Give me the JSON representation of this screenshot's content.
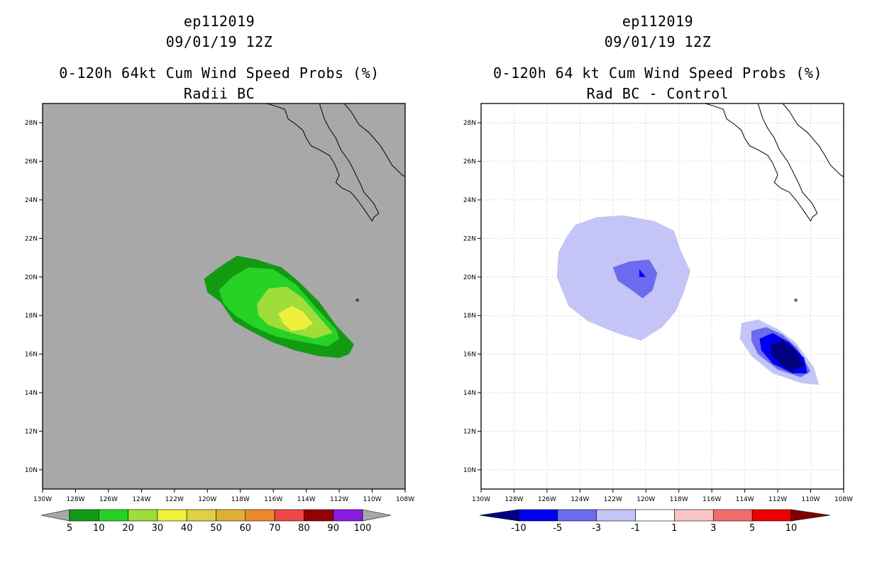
{
  "chart_data": [
    {
      "type": "contour",
      "title_lines": [
        "ep112019",
        "09/01/19 12Z",
        "0-120h 64kt Cum Wind Speed Probs (%)",
        "Radii BC"
      ],
      "x_ticks": [
        "130W",
        "128W",
        "126W",
        "124W",
        "122W",
        "120W",
        "118W",
        "116W",
        "114W",
        "112W",
        "110W",
        "108W"
      ],
      "y_ticks": [
        "10N",
        "12N",
        "14N",
        "16N",
        "18N",
        "20N",
        "22N",
        "24N",
        "26N",
        "28N"
      ],
      "xlim": [
        -130,
        -108
      ],
      "ylim": [
        9,
        29
      ],
      "grid": false,
      "background": "#a8a8a8",
      "colorbar": {
        "labels": [
          "5",
          "10",
          "20",
          "30",
          "40",
          "50",
          "60",
          "70",
          "80",
          "90",
          "100"
        ],
        "colors": [
          "#139a13",
          "#26d226",
          "#9fdd3a",
          "#f0f03c",
          "#dcd244",
          "#dfae34",
          "#ea8a2b",
          "#ee4747",
          "#950000",
          "#8a1be0"
        ],
        "end_colors": [
          "#a8a8a8",
          "#a8a8a8"
        ]
      },
      "contours": [
        {
          "level": "5-10",
          "color": "#139a13",
          "points": [
            [
              -120.2,
              19.9
            ],
            [
              -119.3,
              20.5
            ],
            [
              -118.2,
              21.1
            ],
            [
              -117.0,
              20.9
            ],
            [
              -115.5,
              20.5
            ],
            [
              -114.5,
              19.8
            ],
            [
              -113.2,
              18.7
            ],
            [
              -112.2,
              17.5
            ],
            [
              -111.1,
              16.5
            ],
            [
              -111.4,
              16.0
            ],
            [
              -112.0,
              15.8
            ],
            [
              -113.3,
              15.9
            ],
            [
              -114.7,
              16.2
            ],
            [
              -116.0,
              16.6
            ],
            [
              -117.4,
              17.2
            ],
            [
              -118.4,
              17.7
            ],
            [
              -119.2,
              18.7
            ],
            [
              -120.0,
              19.2
            ]
          ]
        },
        {
          "level": "10-20",
          "color": "#26d226",
          "points": [
            [
              -119.3,
              19.3
            ],
            [
              -118.5,
              20.0
            ],
            [
              -117.5,
              20.5
            ],
            [
              -116.0,
              20.4
            ],
            [
              -114.6,
              19.6
            ],
            [
              -113.4,
              18.4
            ],
            [
              -112.2,
              17.3
            ],
            [
              -112.0,
              16.8
            ],
            [
              -112.7,
              16.4
            ],
            [
              -114.0,
              16.6
            ],
            [
              -115.8,
              16.9
            ],
            [
              -117.2,
              17.4
            ],
            [
              -118.3,
              18.0
            ],
            [
              -119.0,
              18.6
            ]
          ]
        },
        {
          "level": "20-30",
          "color": "#9fdd3a",
          "points": [
            [
              -117.0,
              18.6
            ],
            [
              -116.3,
              19.4
            ],
            [
              -115.2,
              19.5
            ],
            [
              -114.2,
              18.9
            ],
            [
              -113.2,
              17.9
            ],
            [
              -112.4,
              17.1
            ],
            [
              -113.5,
              16.8
            ],
            [
              -114.9,
              17.1
            ],
            [
              -116.3,
              17.5
            ],
            [
              -116.9,
              18.0
            ]
          ]
        },
        {
          "level": "30-40",
          "color": "#f0f03c",
          "points": [
            [
              -115.7,
              18.1
            ],
            [
              -114.9,
              18.5
            ],
            [
              -114.2,
              18.2
            ],
            [
              -113.6,
              17.6
            ],
            [
              -114.1,
              17.3
            ],
            [
              -114.9,
              17.2
            ],
            [
              -115.4,
              17.6
            ]
          ]
        }
      ]
    },
    {
      "type": "contour",
      "title_lines": [
        "ep112019",
        "09/01/19 12Z",
        "0-120h 64 kt Cum Wind Speed Probs (%)",
        "Rad BC - Control"
      ],
      "x_ticks": [
        "130W",
        "128W",
        "126W",
        "124W",
        "122W",
        "120W",
        "118W",
        "116W",
        "114W",
        "112W",
        "110W",
        "108W"
      ],
      "y_ticks": [
        "10N",
        "12N",
        "14N",
        "16N",
        "18N",
        "20N",
        "22N",
        "24N",
        "26N",
        "28N"
      ],
      "xlim": [
        -130,
        -108
      ],
      "ylim": [
        9,
        29
      ],
      "grid": true,
      "background": "#ffffff",
      "colorbar": {
        "labels": [
          "-10",
          "-5",
          "-3",
          "-1",
          "1",
          "3",
          "5",
          "10"
        ],
        "colors": [
          "#0000ee",
          "#6b6bef",
          "#c4c4f7",
          "#ffffff",
          "#f9c4c4",
          "#f36c6c",
          "#ee0000"
        ],
        "end_colors": [
          "#000080",
          "#800000"
        ]
      },
      "contours": [
        {
          "level": "-3 to -1",
          "color": "#c4c4f7",
          "points": [
            [
              -124.8,
              22.1
            ],
            [
              -124.3,
              22.7
            ],
            [
              -123.0,
              23.1
            ],
            [
              -121.4,
              23.2
            ],
            [
              -119.5,
              22.9
            ],
            [
              -118.3,
              22.4
            ],
            [
              -117.9,
              21.4
            ],
            [
              -117.3,
              20.3
            ],
            [
              -117.7,
              19.2
            ],
            [
              -118.2,
              18.2
            ],
            [
              -119.0,
              17.4
            ],
            [
              -120.3,
              16.7
            ],
            [
              -121.8,
              17.1
            ],
            [
              -123.5,
              17.7
            ],
            [
              -124.7,
              18.5
            ],
            [
              -125.4,
              20.0
            ],
            [
              -125.3,
              21.3
            ]
          ]
        },
        {
          "level": "-5 to -3",
          "color": "#6b6bef",
          "points": [
            [
              -122.0,
              20.5
            ],
            [
              -121.0,
              20.8
            ],
            [
              -119.8,
              20.9
            ],
            [
              -119.3,
              20.2
            ],
            [
              -119.6,
              19.3
            ],
            [
              -120.2,
              18.9
            ],
            [
              -121.0,
              19.4
            ],
            [
              -121.7,
              19.8
            ]
          ]
        },
        {
          "level": "-10 to -5",
          "color": "#0000ee",
          "points": [
            [
              -120.4,
              20.4
            ],
            [
              -120.0,
              20.0
            ],
            [
              -120.4,
              20.0
            ]
          ]
        },
        {
          "level": "-3 to -1",
          "color": "#c4c4f7",
          "points": [
            [
              -114.2,
              17.6
            ],
            [
              -113.2,
              17.8
            ],
            [
              -112.0,
              17.3
            ],
            [
              -110.9,
              16.6
            ],
            [
              -109.8,
              15.3
            ],
            [
              -109.5,
              14.4
            ],
            [
              -110.6,
              14.5
            ],
            [
              -112.3,
              15.0
            ],
            [
              -113.6,
              15.9
            ],
            [
              -114.3,
              16.8
            ]
          ]
        },
        {
          "level": "-5 to -3",
          "color": "#6b6bef",
          "points": [
            [
              -113.6,
              17.2
            ],
            [
              -112.7,
              17.4
            ],
            [
              -111.7,
              17.0
            ],
            [
              -110.8,
              16.3
            ],
            [
              -110.0,
              15.1
            ],
            [
              -110.6,
              14.8
            ],
            [
              -112.0,
              15.2
            ],
            [
              -113.2,
              16.0
            ],
            [
              -113.6,
              16.7
            ]
          ]
        },
        {
          "level": "< -10 outer",
          "color": "#0000ee",
          "points": [
            [
              -113.1,
              16.8
            ],
            [
              -112.3,
              17.1
            ],
            [
              -111.3,
              16.6
            ],
            [
              -110.4,
              15.8
            ],
            [
              -110.2,
              15.0
            ],
            [
              -111.1,
              15.0
            ],
            [
              -112.3,
              15.5
            ],
            [
              -113.0,
              16.2
            ]
          ]
        },
        {
          "level": "< -10",
          "color": "#000080",
          "points": [
            [
              -112.4,
              16.5
            ],
            [
              -111.7,
              16.7
            ],
            [
              -110.9,
              16.2
            ],
            [
              -110.4,
              15.4
            ],
            [
              -111.2,
              15.1
            ],
            [
              -112.0,
              15.6
            ],
            [
              -112.4,
              16.0
            ]
          ]
        }
      ]
    }
  ]
}
